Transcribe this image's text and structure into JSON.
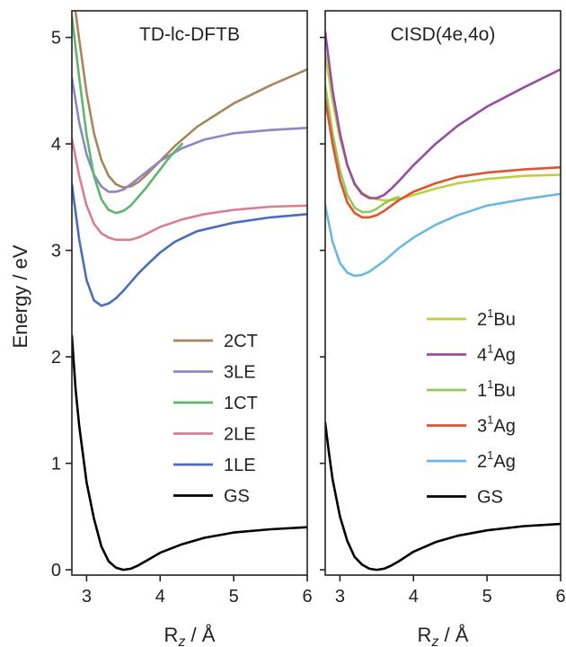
{
  "ylabel": "Energy / eV",
  "xlabel_main": "R",
  "xlabel_sub": "z",
  "xlabel_unit": " / Å",
  "colors": {
    "brown": "#a8855a",
    "purple": "#8f86c6",
    "green": "#5eb66e",
    "pink": "#d97f8f",
    "blue": "#4a6dbb",
    "black": "#000000",
    "yellow_green": "#bfcf3f",
    "magenta": "#9b4aa5",
    "light_green": "#94c85a",
    "orange": "#e0532b",
    "sky": "#6cb8e2"
  },
  "chart_data": [
    {
      "type": "line",
      "title": "TD-lc-DFTB",
      "xlabel": "R_z / Å",
      "ylabel": "Energy / eV",
      "xlim": [
        2.8,
        6.0
      ],
      "ylim": [
        -0.05,
        5.25
      ],
      "xticks": [
        3,
        4,
        5,
        6
      ],
      "yticks": [
        0,
        1,
        2,
        3,
        4,
        5
      ],
      "grid": false,
      "legend": "lower-right",
      "series": [
        {
          "name": "2CT",
          "color": "#a8855a",
          "x": [
            2.8,
            2.9,
            3.0,
            3.1,
            3.2,
            3.3,
            3.4,
            3.5,
            3.6,
            3.7,
            3.8,
            4.0,
            4.2,
            4.5,
            5.0,
            5.5,
            6.0
          ],
          "y": [
            5.5,
            4.98,
            4.48,
            4.1,
            3.85,
            3.7,
            3.62,
            3.59,
            3.6,
            3.64,
            3.7,
            3.84,
            3.98,
            4.16,
            4.38,
            4.55,
            4.7
          ]
        },
        {
          "name": "3LE",
          "color": "#8f86c6",
          "x": [
            2.8,
            2.9,
            3.0,
            3.1,
            3.2,
            3.3,
            3.4,
            3.5,
            3.6,
            3.8,
            4.0,
            4.3,
            4.6,
            5.0,
            5.5,
            6.0
          ],
          "y": [
            4.62,
            4.2,
            3.9,
            3.71,
            3.6,
            3.55,
            3.55,
            3.57,
            3.62,
            3.73,
            3.84,
            3.96,
            4.04,
            4.1,
            4.13,
            4.15
          ]
        },
        {
          "name": "1CT",
          "color": "#5eb66e",
          "x": [
            2.8,
            2.9,
            3.0,
            3.1,
            3.2,
            3.3,
            3.4,
            3.5,
            3.6,
            3.7,
            3.8,
            3.9,
            4.0,
            4.1,
            4.2,
            4.3
          ],
          "y": [
            5.2,
            4.62,
            4.08,
            3.7,
            3.48,
            3.38,
            3.35,
            3.37,
            3.42,
            3.5,
            3.58,
            3.67,
            3.76,
            3.85,
            3.93,
            4.0
          ]
        },
        {
          "name": "2LE",
          "color": "#d97f8f",
          "x": [
            2.8,
            2.9,
            3.0,
            3.1,
            3.2,
            3.3,
            3.4,
            3.5,
            3.6,
            3.7,
            3.8,
            4.0,
            4.3,
            4.6,
            5.0,
            5.5,
            6.0
          ],
          "y": [
            4.05,
            3.7,
            3.42,
            3.25,
            3.16,
            3.12,
            3.1,
            3.1,
            3.1,
            3.12,
            3.15,
            3.22,
            3.29,
            3.34,
            3.38,
            3.41,
            3.42
          ]
        },
        {
          "name": "1LE",
          "color": "#4a6dbb",
          "x": [
            2.8,
            2.9,
            3.0,
            3.1,
            3.2,
            3.3,
            3.4,
            3.5,
            3.6,
            3.7,
            3.8,
            4.0,
            4.2,
            4.5,
            5.0,
            5.5,
            6.0
          ],
          "y": [
            3.62,
            3.1,
            2.72,
            2.53,
            2.48,
            2.5,
            2.55,
            2.62,
            2.7,
            2.78,
            2.85,
            2.98,
            3.08,
            3.18,
            3.26,
            3.31,
            3.34
          ]
        },
        {
          "name": "GS",
          "color": "#000000",
          "x": [
            2.8,
            2.85,
            2.9,
            3.0,
            3.1,
            3.2,
            3.3,
            3.4,
            3.5,
            3.6,
            3.7,
            3.8,
            4.0,
            4.3,
            4.6,
            5.0,
            5.5,
            6.0
          ],
          "y": [
            2.2,
            1.7,
            1.35,
            0.82,
            0.48,
            0.22,
            0.08,
            0.02,
            0.0,
            0.01,
            0.04,
            0.08,
            0.16,
            0.24,
            0.3,
            0.35,
            0.38,
            0.4
          ]
        }
      ]
    },
    {
      "type": "line",
      "title": "CISD(4e,4o)",
      "xlabel": "R_z / Å",
      "xlim": [
        2.8,
        6.0
      ],
      "ylim": [
        -0.05,
        5.25
      ],
      "xticks": [
        3,
        4,
        5,
        6
      ],
      "grid": false,
      "legend": "lower-right",
      "series": [
        {
          "name": "2¹Bu",
          "label_main": "2",
          "label_sup": "1",
          "label_tail": "Bu",
          "color": "#bfcf3f",
          "x": [
            2.8,
            2.9,
            3.0,
            3.1,
            3.2,
            3.3,
            3.4,
            3.5,
            3.6,
            3.7,
            3.8,
            4.0,
            4.3,
            4.6,
            5.0,
            5.5,
            6.0
          ],
          "y": [
            4.85,
            4.4,
            4.05,
            3.8,
            3.63,
            3.54,
            3.5,
            3.48,
            3.47,
            3.47,
            3.48,
            3.52,
            3.58,
            3.63,
            3.67,
            3.7,
            3.71
          ]
        },
        {
          "name": "4¹Ag",
          "label_main": "4",
          "label_sup": "1",
          "label_tail": "Ag",
          "color": "#9b4aa5",
          "x": [
            2.8,
            2.9,
            3.0,
            3.1,
            3.2,
            3.3,
            3.4,
            3.5,
            3.6,
            3.7,
            3.8,
            4.0,
            4.3,
            4.6,
            5.0,
            5.5,
            6.0
          ],
          "y": [
            5.05,
            4.5,
            4.1,
            3.8,
            3.62,
            3.53,
            3.49,
            3.49,
            3.52,
            3.58,
            3.65,
            3.8,
            4.0,
            4.17,
            4.35,
            4.53,
            4.7
          ]
        },
        {
          "name": "1¹Bu",
          "label_main": "1",
          "label_sup": "1",
          "label_tail": "Bu",
          "color": "#94c85a",
          "x": [
            2.8,
            2.9,
            3.0,
            3.1,
            3.2,
            3.3,
            3.4,
            3.5,
            3.6,
            3.7,
            3.8
          ],
          "y": [
            4.55,
            4.1,
            3.75,
            3.52,
            3.4,
            3.36,
            3.36,
            3.39,
            3.44,
            3.48,
            3.5
          ]
        },
        {
          "name": "3¹Ag",
          "label_main": "3",
          "label_sup": "1",
          "label_tail": "Ag",
          "color": "#e0532b",
          "x": [
            2.8,
            2.9,
            3.0,
            3.1,
            3.2,
            3.3,
            3.4,
            3.5,
            3.6,
            3.7,
            3.8,
            4.0,
            4.3,
            4.6,
            5.0,
            5.5,
            6.0
          ],
          "y": [
            4.42,
            4.0,
            3.66,
            3.45,
            3.35,
            3.31,
            3.31,
            3.33,
            3.37,
            3.42,
            3.47,
            3.55,
            3.63,
            3.69,
            3.73,
            3.76,
            3.78
          ]
        },
        {
          "name": "2¹Ag",
          "label_main": "2",
          "label_sup": "1",
          "label_tail": "Ag",
          "color": "#6cb8e2",
          "x": [
            2.8,
            2.9,
            3.0,
            3.1,
            3.2,
            3.3,
            3.4,
            3.5,
            3.6,
            3.7,
            3.8,
            4.0,
            4.3,
            4.6,
            5.0,
            5.5,
            6.0
          ],
          "y": [
            3.42,
            3.08,
            2.88,
            2.79,
            2.76,
            2.77,
            2.8,
            2.85,
            2.9,
            2.96,
            3.02,
            3.12,
            3.24,
            3.33,
            3.42,
            3.48,
            3.53
          ]
        },
        {
          "name": "GS",
          "label_main": "GS",
          "label_sup": "",
          "label_tail": "",
          "color": "#000000",
          "x": [
            2.8,
            2.85,
            2.9,
            3.0,
            3.1,
            3.2,
            3.3,
            3.4,
            3.5,
            3.6,
            3.7,
            3.8,
            4.0,
            4.3,
            4.6,
            5.0,
            5.5,
            6.0
          ],
          "y": [
            1.38,
            1.1,
            0.85,
            0.5,
            0.27,
            0.12,
            0.05,
            0.01,
            0.0,
            0.01,
            0.04,
            0.08,
            0.17,
            0.26,
            0.32,
            0.37,
            0.41,
            0.43
          ]
        }
      ]
    }
  ]
}
